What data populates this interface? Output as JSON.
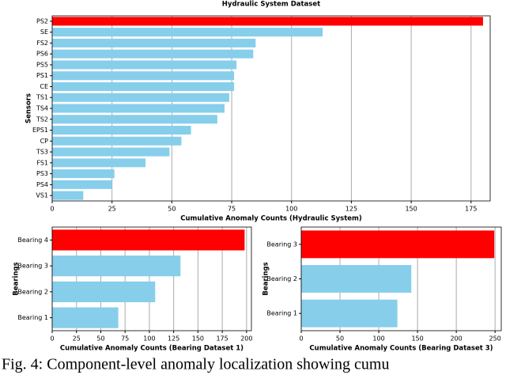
{
  "chart_data": [
    {
      "type": "barh",
      "title": "Hydraulic System Dataset",
      "xlabel": "Cumulative Anomaly Counts (Hydraulic System)",
      "ylabel": "Sensors",
      "categories": [
        "PS2",
        "SE",
        "FS2",
        "PS6",
        "PS5",
        "PS1",
        "CE",
        "TS1",
        "TS4",
        "TS2",
        "EPS1",
        "CP",
        "TS3",
        "FS1",
        "PS3",
        "PS4",
        "VS1"
      ],
      "values": [
        180,
        113,
        85,
        84,
        77,
        76,
        76,
        74,
        72,
        69,
        58,
        54,
        49,
        39,
        26,
        25,
        13
      ],
      "colors": [
        "#ff0000",
        "#87ceeb",
        "#87ceeb",
        "#87ceeb",
        "#87ceeb",
        "#87ceeb",
        "#87ceeb",
        "#87ceeb",
        "#87ceeb",
        "#87ceeb",
        "#87ceeb",
        "#87ceeb",
        "#87ceeb",
        "#87ceeb",
        "#87ceeb",
        "#87ceeb",
        "#87ceeb"
      ],
      "xlim": [
        0,
        183
      ],
      "xticks": [
        0,
        25,
        50,
        75,
        100,
        125,
        150,
        175
      ],
      "grid": true
    },
    {
      "type": "barh",
      "xlabel": "Cumulative Anomaly Counts (Bearing Dataset 1)",
      "ylabel": "Bearings",
      "categories": [
        "Bearing 4",
        "Bearing 3",
        "Bearing 2",
        "Bearing 1"
      ],
      "values": [
        198,
        132,
        106,
        68
      ],
      "colors": [
        "#ff0000",
        "#87ceeb",
        "#87ceeb",
        "#87ceeb"
      ],
      "xlim": [
        0,
        205
      ],
      "xticks": [
        0,
        25,
        50,
        75,
        100,
        125,
        150,
        175,
        200
      ],
      "grid": true
    },
    {
      "type": "barh",
      "xlabel": "Cumulative Anomaly Counts (Bearing Dataset 3)",
      "ylabel": "Bearings",
      "categories": [
        "Bearing 3",
        "Bearing 2",
        "Bearing 1"
      ],
      "values": [
        249,
        142,
        124
      ],
      "colors": [
        "#ff0000",
        "#87ceeb",
        "#87ceeb"
      ],
      "xlim": [
        0,
        258
      ],
      "xticks": [
        0,
        50,
        100,
        150,
        200,
        250
      ],
      "grid": true
    }
  ],
  "caption": "Fig. 4: Component-level anomaly localization showing cumu"
}
